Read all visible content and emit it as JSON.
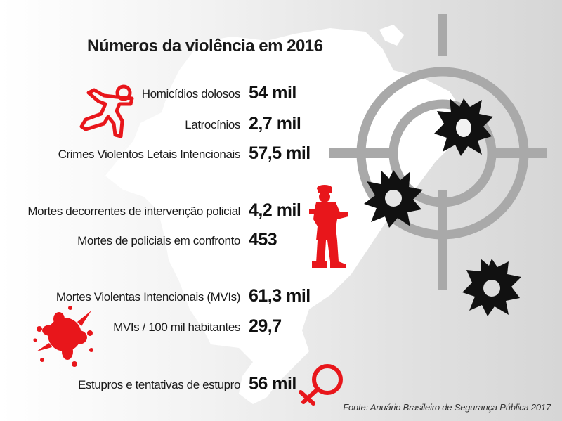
{
  "title": "Números da violência em 2016",
  "stats": [
    {
      "label": "Homicídios dolosos",
      "value": "54 mil"
    },
    {
      "label": "Latrocínios",
      "value": "2,7 mil"
    },
    {
      "label": "Crimes Violentos Letais Intencionais",
      "value": "57,5 mil"
    },
    {
      "label": "Mortes decorrentes de intervenção policial",
      "value": "4,2 mil"
    },
    {
      "label": "Mortes de policiais em confronto",
      "value": "453"
    },
    {
      "label": "Mortes Violentas Intencionais (MVIs)",
      "value": "61,3 mil"
    },
    {
      "label": "MVIs / 100 mil habitantes",
      "value": "29,7"
    },
    {
      "label": "Estupros e tentativas de estupro",
      "value": "56 mil"
    }
  ],
  "source": "Fonte: Anuário Brasileiro de Segurança Pública 2017",
  "icons": {
    "body_outline": "body-outline-icon",
    "police": "police-officer-icon",
    "blood": "blood-splatter-icon",
    "female": "female-symbol-icon",
    "crosshair": "crosshair-icon",
    "bullet_hole": "bullet-hole-icon"
  },
  "colors": {
    "accent_red": "#e8161b",
    "text": "#1a1a1a",
    "map": "#ffffff",
    "crosshair": "#a9a9a9",
    "bullet_hole": "#111111"
  }
}
